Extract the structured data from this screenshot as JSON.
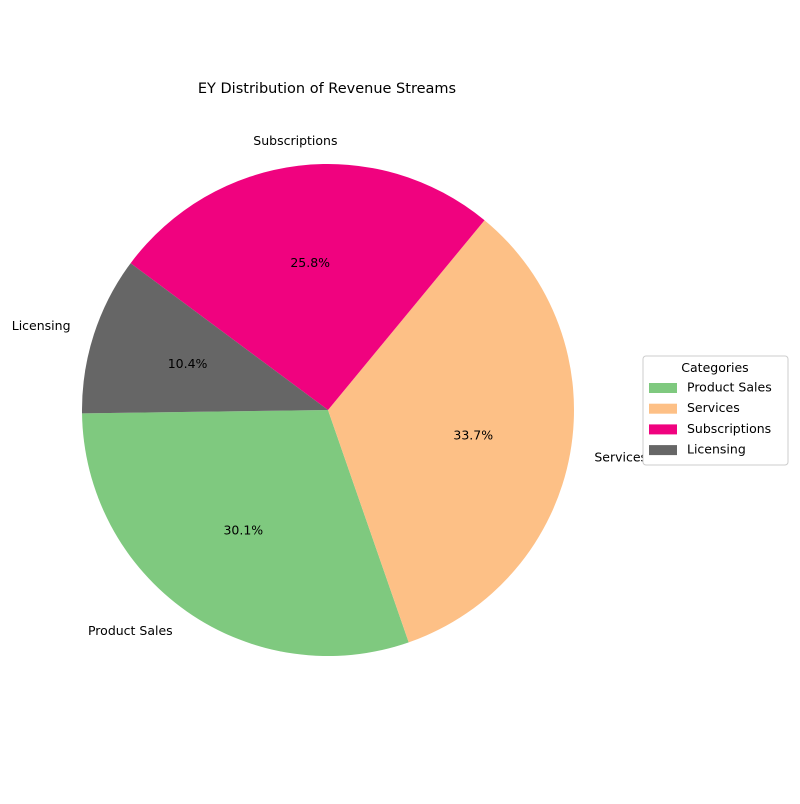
{
  "chart_data": {
    "type": "pie",
    "title": "EY Distribution of Revenue Streams",
    "categories": [
      "Product Sales",
      "Services",
      "Subscriptions",
      "Licensing"
    ],
    "values": [
      30.1,
      33.7,
      25.8,
      10.4
    ],
    "percent_labels": [
      "30.1%",
      "33.7%",
      "25.8%",
      "10.4%"
    ],
    "colors": [
      "#7fc97f",
      "#fdc086",
      "#f0027f",
      "#666666"
    ],
    "legend": {
      "title": "Categories",
      "entries": [
        "Product Sales",
        "Services",
        "Subscriptions",
        "Licensing"
      ],
      "placement": "right"
    }
  }
}
